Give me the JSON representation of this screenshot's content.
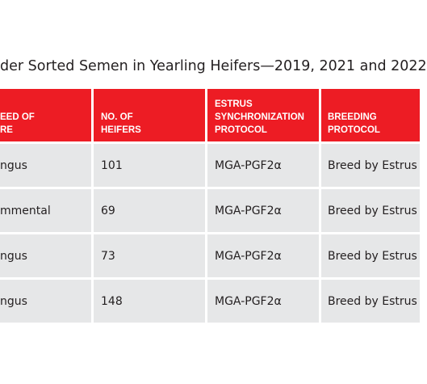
{
  "table": {
    "title": "der Sorted Semen in Yearling Heifers—2019, 2021 and 2022",
    "headers": [
      [
        "EED OF",
        "RE"
      ],
      [
        "NO. OF",
        "HEIFERS"
      ],
      [
        "ESTRUS",
        "SYNCHRONIZATION",
        "PROTOCOL"
      ],
      [
        "BREEDING",
        "PROTOCOL"
      ]
    ],
    "rows": [
      [
        "ngus",
        "101",
        "MGA-PGF2α",
        "Breed by Estrus"
      ],
      [
        "mmental",
        "69",
        "MGA-PGF2α",
        "Breed by Estrus"
      ],
      [
        "ngus",
        "73",
        "MGA-PGF2α",
        "Breed by Estrus"
      ],
      [
        "ngus",
        "148",
        "MGA-PGF2α",
        "Breed by Estrus"
      ]
    ]
  }
}
